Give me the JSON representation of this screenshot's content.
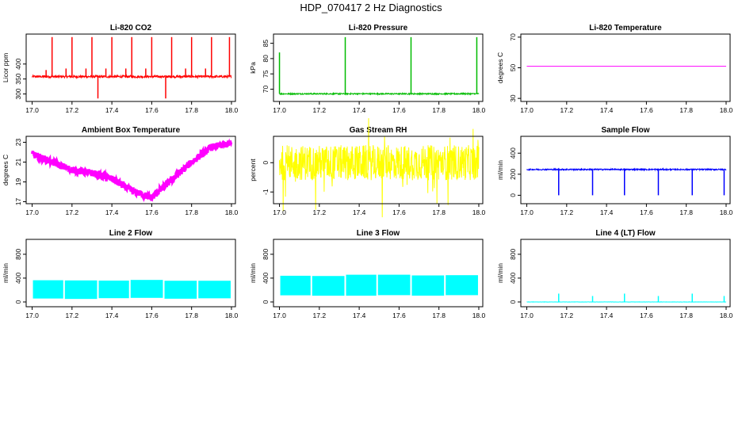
{
  "title": "HDP_070417  2 Hz Diagnostics",
  "chart_data": [
    {
      "type": "line",
      "title": "Li-820 CO2",
      "ylabel": "Licor ppm",
      "color": "#ff0000",
      "xlim": [
        16.97,
        18.02
      ],
      "ylim": [
        275,
        500
      ],
      "xticks": [
        "17.0",
        "17.2",
        "17.4",
        "17.6",
        "17.8",
        "18.0"
      ],
      "yticks": [
        "300",
        "350",
        "400"
      ],
      "series": {
        "baseline": 358,
        "noise": 4,
        "spikes_up": [
          [
            17.07,
            380
          ],
          [
            17.1,
            490
          ],
          [
            17.17,
            385
          ],
          [
            17.2,
            490
          ],
          [
            17.27,
            385
          ],
          [
            17.3,
            490
          ],
          [
            17.33,
            285
          ],
          [
            17.37,
            385
          ],
          [
            17.4,
            490
          ],
          [
            17.47,
            385
          ],
          [
            17.5,
            490
          ],
          [
            17.57,
            385
          ],
          [
            17.6,
            490
          ],
          [
            17.67,
            285
          ],
          [
            17.7,
            490
          ],
          [
            17.77,
            385
          ],
          [
            17.8,
            490
          ],
          [
            17.87,
            385
          ],
          [
            17.9,
            490
          ],
          [
            17.99,
            490
          ]
        ]
      }
    },
    {
      "type": "line",
      "title": "Li-820 Pressure",
      "ylabel": "kPa",
      "color": "#00bb00",
      "xlim": [
        16.97,
        18.02
      ],
      "ylim": [
        66,
        88
      ],
      "xticks": [
        "17.0",
        "17.2",
        "17.4",
        "17.6",
        "17.8",
        "18.0"
      ],
      "yticks": [
        "70",
        "75",
        "80",
        "85"
      ],
      "series": {
        "baseline": 68.5,
        "noise": 0.2,
        "spikes_up": [
          [
            17.0,
            82
          ],
          [
            17.33,
            87
          ],
          [
            17.66,
            87
          ],
          [
            17.99,
            87
          ]
        ]
      }
    },
    {
      "type": "line",
      "title": "Li-820 Temperature",
      "ylabel": "degrees C",
      "color": "#ff00ff",
      "xlim": [
        16.97,
        18.02
      ],
      "ylim": [
        28,
        72
      ],
      "xticks": [
        "17.0",
        "17.2",
        "17.4",
        "17.6",
        "17.8",
        "18.0"
      ],
      "yticks": [
        "30",
        "50",
        "70"
      ],
      "series": {
        "baseline": 51,
        "noise": 0
      }
    },
    {
      "type": "line",
      "title": "Ambient Box Temperature",
      "ylabel": "degrees C",
      "color": "#ff00ff",
      "xlim": [
        16.97,
        18.02
      ],
      "ylim": [
        16.8,
        23.6
      ],
      "xticks": [
        "17.0",
        "17.2",
        "17.4",
        "17.6",
        "17.8",
        "18.0"
      ],
      "yticks": [
        "17",
        "19",
        "21",
        "23"
      ],
      "series": {
        "points": [
          [
            17.0,
            21.8
          ],
          [
            17.1,
            21.0
          ],
          [
            17.2,
            20.2
          ],
          [
            17.3,
            19.9
          ],
          [
            17.4,
            19.3
          ],
          [
            17.5,
            18.1
          ],
          [
            17.6,
            17.4
          ],
          [
            17.7,
            19.2
          ],
          [
            17.8,
            21.0
          ],
          [
            17.9,
            22.5
          ],
          [
            18.0,
            22.9
          ]
        ],
        "noise": 0.35
      }
    },
    {
      "type": "line",
      "title": "Gas Stream RH",
      "ylabel": "percent",
      "color": "#ffff00",
      "xlim": [
        16.97,
        18.02
      ],
      "ylim": [
        -1.4,
        0.9
      ],
      "xticks": [
        "17.0",
        "17.2",
        "17.4",
        "17.6",
        "17.8",
        "18.0"
      ],
      "yticks": [
        "-1",
        "0"
      ],
      "series": {
        "baseline": 0.0,
        "noise": 0.6,
        "outliers": 1.2
      }
    },
    {
      "type": "line",
      "title": "Sample Flow",
      "ylabel": "ml/min",
      "color": "#0000ff",
      "xlim": [
        16.97,
        18.02
      ],
      "ylim": [
        -80,
        560
      ],
      "xticks": [
        "17.0",
        "17.2",
        "17.4",
        "17.6",
        "17.8",
        "18.0"
      ],
      "yticks": [
        "0",
        "200",
        "400"
      ],
      "series": {
        "baseline": 245,
        "noise": 6,
        "spikes_down": [
          [
            17.16,
            0
          ],
          [
            17.33,
            0
          ],
          [
            17.49,
            0
          ],
          [
            17.66,
            0
          ],
          [
            17.83,
            0
          ],
          [
            17.99,
            0
          ]
        ]
      }
    },
    {
      "type": "line",
      "title": "Line 2 Flow",
      "ylabel": "ml/min",
      "color": "#00ffff",
      "xlim": [
        16.97,
        18.02
      ],
      "ylim": [
        -80,
        1050
      ],
      "xticks": [
        "17.0",
        "17.2",
        "17.4",
        "17.6",
        "17.8",
        "18.0"
      ],
      "yticks": [
        "0",
        "400",
        "800"
      ],
      "series": {
        "band": [
          50,
          370
        ],
        "gaps": [
          17.16,
          17.33,
          17.49,
          17.66,
          17.83
        ]
      }
    },
    {
      "type": "line",
      "title": "Line 3 Flow",
      "ylabel": "ml/min",
      "color": "#00ffff",
      "xlim": [
        16.97,
        18.02
      ],
      "ylim": [
        -80,
        1050
      ],
      "xticks": [
        "17.0",
        "17.2",
        "17.4",
        "17.6",
        "17.8",
        "18.0"
      ],
      "yticks": [
        "0",
        "400",
        "800"
      ],
      "series": {
        "band": [
          100,
          460
        ],
        "gaps": [
          17.16,
          17.33,
          17.49,
          17.66,
          17.83
        ]
      }
    },
    {
      "type": "line",
      "title": "Line 4 (LT) Flow",
      "ylabel": "ml/min",
      "color": "#00ffff",
      "xlim": [
        16.97,
        18.02
      ],
      "ylim": [
        -80,
        1050
      ],
      "xticks": [
        "17.0",
        "17.2",
        "17.4",
        "17.6",
        "17.8",
        "18.0"
      ],
      "yticks": [
        "0",
        "400",
        "800"
      ],
      "series": {
        "baseline": 0,
        "noise": 2,
        "spikes_up": [
          [
            17.16,
            140
          ],
          [
            17.33,
            100
          ],
          [
            17.49,
            140
          ],
          [
            17.66,
            100
          ],
          [
            17.83,
            140
          ],
          [
            17.99,
            100
          ]
        ]
      }
    }
  ]
}
